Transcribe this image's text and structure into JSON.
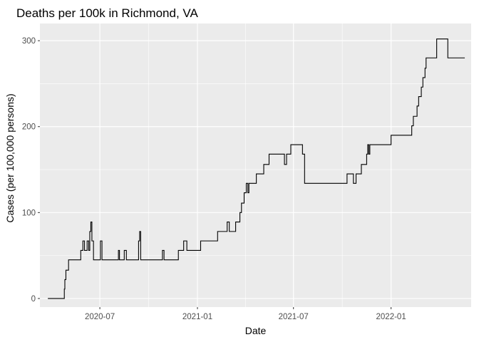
{
  "chart_data": {
    "type": "line",
    "title": "Deaths per 100k in Richmond, VA",
    "xlabel": "Date",
    "ylabel": "Cases (per 100,000 persons)",
    "x_ticks": [
      "2020-07",
      "2021-01",
      "2021-07",
      "2022-01"
    ],
    "y_ticks": [
      "0",
      "100",
      "200",
      "300"
    ],
    "xlim": [
      "2020-03-10",
      "2022-06-01"
    ],
    "ylim": [
      -10,
      320
    ],
    "grid": true,
    "background": "#ebebeb",
    "grid_color": "#ffffff",
    "line_color": "#000000",
    "series": [
      {
        "values": [
          [
            "2020-03-25",
            0
          ],
          [
            "2020-04-24",
            0
          ],
          [
            "2020-04-25",
            11
          ],
          [
            "2020-04-26",
            22
          ],
          [
            "2020-04-28",
            33
          ],
          [
            "2020-05-03",
            45
          ],
          [
            "2020-05-24",
            45
          ],
          [
            "2020-05-26",
            56
          ],
          [
            "2020-05-30",
            67
          ],
          [
            "2020-06-02",
            56
          ],
          [
            "2020-06-07",
            67
          ],
          [
            "2020-06-10",
            56
          ],
          [
            "2020-06-12",
            78
          ],
          [
            "2020-06-14",
            89
          ],
          [
            "2020-06-16",
            67
          ],
          [
            "2020-06-19",
            45
          ],
          [
            "2020-06-30",
            45
          ],
          [
            "2020-07-02",
            67
          ],
          [
            "2020-07-05",
            45
          ],
          [
            "2020-08-04",
            45
          ],
          [
            "2020-08-05",
            56
          ],
          [
            "2020-08-07",
            45
          ],
          [
            "2020-08-14",
            45
          ],
          [
            "2020-08-16",
            56
          ],
          [
            "2020-08-20",
            45
          ],
          [
            "2020-09-10",
            45
          ],
          [
            "2020-09-12",
            67
          ],
          [
            "2020-09-14",
            78
          ],
          [
            "2020-09-16",
            45
          ],
          [
            "2020-10-25",
            45
          ],
          [
            "2020-10-27",
            56
          ],
          [
            "2020-10-30",
            45
          ],
          [
            "2020-11-24",
            45
          ],
          [
            "2020-11-26",
            56
          ],
          [
            "2020-12-04",
            56
          ],
          [
            "2020-12-06",
            67
          ],
          [
            "2020-12-12",
            56
          ],
          [
            "2021-01-05",
            56
          ],
          [
            "2021-01-07",
            67
          ],
          [
            "2021-02-06",
            67
          ],
          [
            "2021-02-08",
            78
          ],
          [
            "2021-02-24",
            78
          ],
          [
            "2021-02-26",
            89
          ],
          [
            "2021-03-02",
            78
          ],
          [
            "2021-03-12",
            78
          ],
          [
            "2021-03-14",
            89
          ],
          [
            "2021-03-22",
            100
          ],
          [
            "2021-03-25",
            111
          ],
          [
            "2021-03-30",
            123
          ],
          [
            "2021-04-03",
            134
          ],
          [
            "2021-04-06",
            123
          ],
          [
            "2021-04-08",
            134
          ],
          [
            "2021-04-22",
            145
          ],
          [
            "2021-05-06",
            156
          ],
          [
            "2021-05-16",
            168
          ],
          [
            "2021-06-11",
            168
          ],
          [
            "2021-06-14",
            156
          ],
          [
            "2021-06-18",
            168
          ],
          [
            "2021-06-26",
            179
          ],
          [
            "2021-07-16",
            179
          ],
          [
            "2021-07-18",
            168
          ],
          [
            "2021-07-22",
            134
          ],
          [
            "2021-10-08",
            134
          ],
          [
            "2021-10-10",
            145
          ],
          [
            "2021-10-20",
            145
          ],
          [
            "2021-10-22",
            134
          ],
          [
            "2021-10-27",
            145
          ],
          [
            "2021-11-06",
            156
          ],
          [
            "2021-11-14",
            156
          ],
          [
            "2021-11-16",
            168
          ],
          [
            "2021-11-18",
            179
          ],
          [
            "2021-11-20",
            168
          ],
          [
            "2021-11-22",
            179
          ],
          [
            "2021-12-30",
            179
          ],
          [
            "2022-01-01",
            190
          ],
          [
            "2022-02-06",
            190
          ],
          [
            "2022-02-09",
            201
          ],
          [
            "2022-02-12",
            212
          ],
          [
            "2022-02-19",
            224
          ],
          [
            "2022-02-22",
            235
          ],
          [
            "2022-02-27",
            246
          ],
          [
            "2022-03-02",
            257
          ],
          [
            "2022-03-06",
            268
          ],
          [
            "2022-03-08",
            280
          ],
          [
            "2022-03-26",
            280
          ],
          [
            "2022-03-28",
            302
          ],
          [
            "2022-04-15",
            302
          ],
          [
            "2022-04-18",
            280
          ],
          [
            "2022-05-20",
            280
          ]
        ]
      }
    ]
  }
}
